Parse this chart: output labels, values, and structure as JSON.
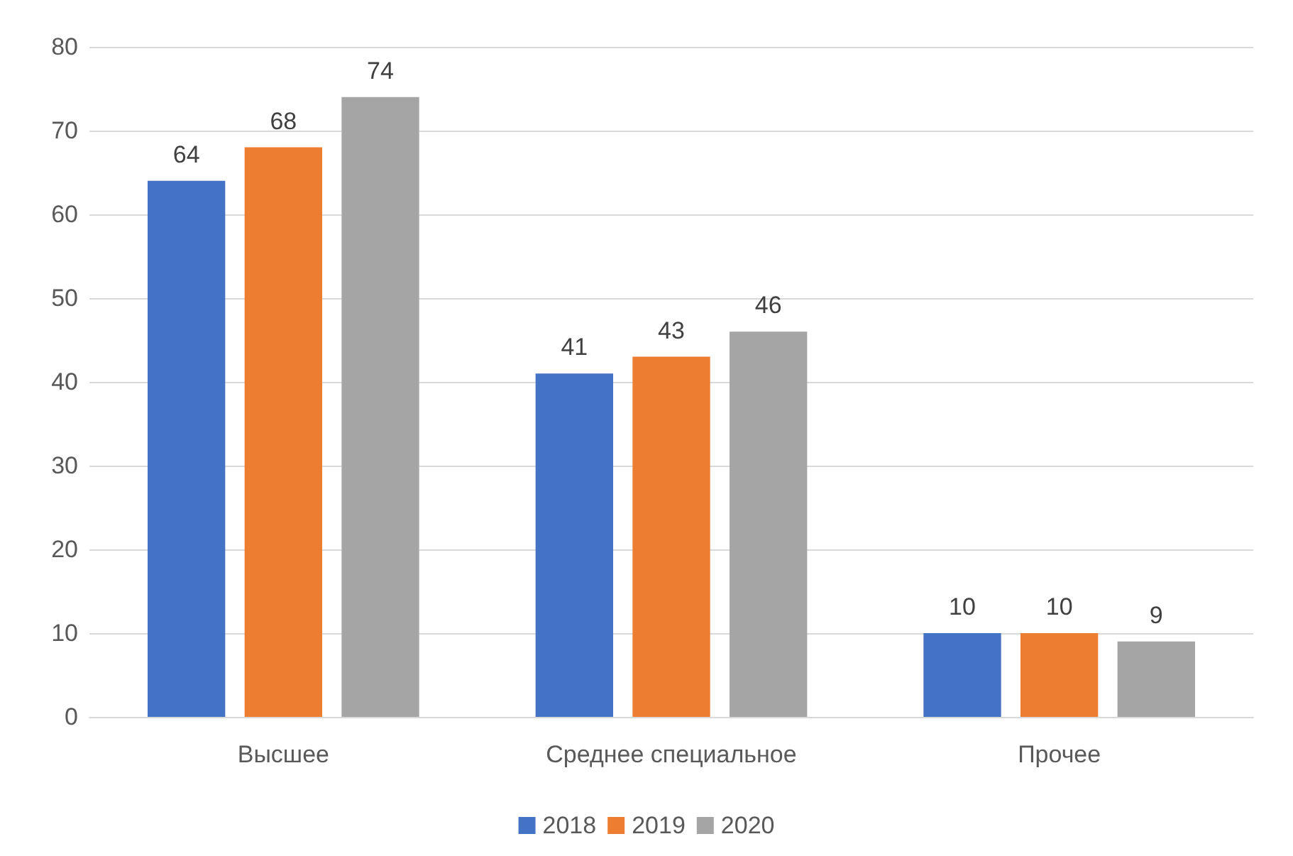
{
  "chart_data": {
    "type": "bar",
    "categories": [
      "Высшее",
      "Среднее специальное",
      "Прочее"
    ],
    "series": [
      {
        "name": "2018",
        "color": "#4472c4",
        "values": [
          64,
          41,
          10
        ]
      },
      {
        "name": "2019",
        "color": "#ed7d31",
        "values": [
          68,
          43,
          10
        ]
      },
      {
        "name": "2020",
        "color": "#a5a5a5",
        "values": [
          74,
          46,
          9
        ]
      }
    ],
    "ylim": [
      0,
      80
    ],
    "yticks": [
      0,
      10,
      20,
      30,
      40,
      50,
      60,
      70,
      80
    ],
    "grid": "y",
    "legend": "bottom",
    "data_labels": true
  }
}
